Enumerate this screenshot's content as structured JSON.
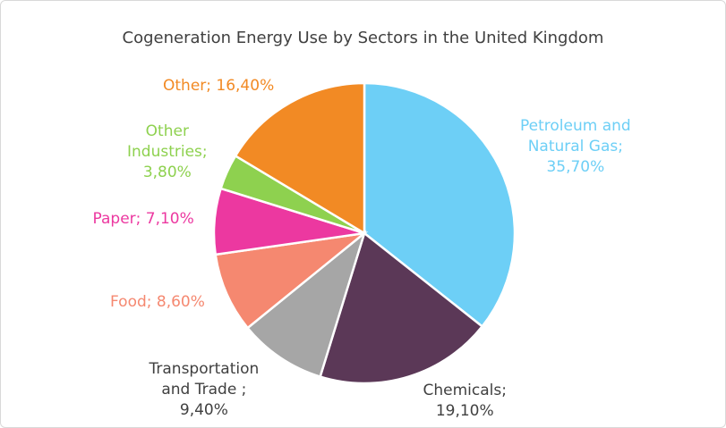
{
  "chart_data": {
    "type": "pie",
    "title": "Cogeneration Energy Use by Sectors in the United Kingdom",
    "start_angle": "top",
    "direction": "clockwise",
    "slices": [
      {
        "name": "Petroleum and Natural Gas",
        "value": 35.7,
        "label": "Petroleum and\nNatural Gas;\n35,70%",
        "color": "#6dcff6",
        "label_color": "#6dcff6"
      },
      {
        "name": "Chemicals",
        "value": 19.1,
        "label": "Chemicals;\n19,10%",
        "color": "#5b3857",
        "label_color": "#404040"
      },
      {
        "name": "Transportation and Trade",
        "value": 9.4,
        "label": "Transportation\nand Trade ;\n9,40%",
        "color": "#a6a6a6",
        "label_color": "#404040"
      },
      {
        "name": "Food",
        "value": 8.6,
        "label": "Food; 8,60%",
        "color": "#f58870",
        "label_color": "#f58870"
      },
      {
        "name": "Paper",
        "value": 7.1,
        "label": "Paper; 7,10%",
        "color": "#ec38a0",
        "label_color": "#ec38a0"
      },
      {
        "name": "Other Industries",
        "value": 3.8,
        "label": "Other\nIndustries;\n3,80%",
        "color": "#8ed14f",
        "label_color": "#8ed14f"
      },
      {
        "name": "Other",
        "value": 16.4,
        "label": "Other; 16,40%",
        "color": "#f28a24",
        "label_color": "#f28a24"
      }
    ]
  }
}
